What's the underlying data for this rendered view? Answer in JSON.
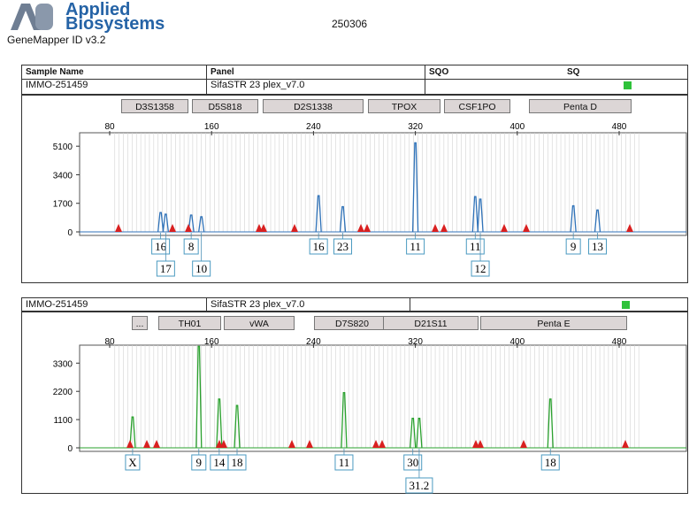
{
  "logo": {
    "line1": "Applied",
    "line2": "Biosystems"
  },
  "software": "GeneMapper ID v3.2",
  "run_id": "250306",
  "header": {
    "columns": [
      "Sample Name",
      "Panel",
      "SQO",
      "SQ"
    ],
    "sample": "IMMO-251459",
    "panel": "SifaSTR 23 plex_v7.0"
  },
  "colors": {
    "blue": "#2f72b8",
    "green": "#2aa12e",
    "red_marker": "#d92020",
    "quality_ok": "#2fc23a"
  },
  "chart_data": [
    {
      "type": "line",
      "series": [
        {
          "color": "blue"
        }
      ],
      "x_ticks": [
        80,
        160,
        240,
        320,
        400,
        480
      ],
      "y_ticks": [
        0,
        1700,
        3400,
        5100
      ],
      "ylim": [
        0,
        5900
      ],
      "markers": [
        "D3S1358",
        "D5S818",
        "D2S1338",
        "TPOX",
        "CSF1PO",
        "Penta D"
      ],
      "peaks": [
        {
          "x": 120,
          "y": 1150
        },
        {
          "x": 124,
          "y": 1050
        },
        {
          "x": 144,
          "y": 1000
        },
        {
          "x": 152,
          "y": 900
        },
        {
          "x": 244,
          "y": 2150
        },
        {
          "x": 263,
          "y": 1500
        },
        {
          "x": 320,
          "y": 5300
        },
        {
          "x": 367,
          "y": 2100
        },
        {
          "x": 371,
          "y": 1950
        },
        {
          "x": 444,
          "y": 1550
        },
        {
          "x": 463,
          "y": 1300
        }
      ],
      "alleles": [
        {
          "label": "16",
          "x": 120,
          "row": 0
        },
        {
          "label": "17",
          "x": 124,
          "row": 1
        },
        {
          "label": "8",
          "x": 144,
          "row": 0
        },
        {
          "label": "10",
          "x": 152,
          "row": 1
        },
        {
          "label": "16",
          "x": 244,
          "row": 0
        },
        {
          "label": "23",
          "x": 263,
          "row": 0
        },
        {
          "label": "11",
          "x": 320,
          "row": 0
        },
        {
          "label": "11",
          "x": 367,
          "row": 0
        },
        {
          "label": "12",
          "x": 371,
          "row": 1
        },
        {
          "label": "9",
          "x": 444,
          "row": 0
        },
        {
          "label": "13",
          "x": 463,
          "row": 0
        }
      ]
    },
    {
      "type": "line",
      "series": [
        {
          "color": "green"
        }
      ],
      "x_ticks": [
        80,
        160,
        240,
        320,
        400,
        480
      ],
      "y_ticks": [
        0,
        1100,
        2200,
        3300
      ],
      "ylim": [
        0,
        4000
      ],
      "markers": [
        "...",
        "TH01",
        "vWA",
        "D7S820",
        "D21S11",
        "Penta E"
      ],
      "peaks": [
        {
          "x": 98,
          "y": 1200
        },
        {
          "x": 150,
          "y": 3950
        },
        {
          "x": 166,
          "y": 1900
        },
        {
          "x": 180,
          "y": 1650
        },
        {
          "x": 264,
          "y": 2150
        },
        {
          "x": 318,
          "y": 1150
        },
        {
          "x": 323,
          "y": 1150
        },
        {
          "x": 426,
          "y": 1900
        }
      ],
      "alleles": [
        {
          "label": "X",
          "x": 98,
          "row": 0
        },
        {
          "label": "9",
          "x": 150,
          "row": 0
        },
        {
          "label": "14",
          "x": 166,
          "row": 0
        },
        {
          "label": "18",
          "x": 180,
          "row": 0
        },
        {
          "label": "11",
          "x": 264,
          "row": 0
        },
        {
          "label": "30",
          "x": 318,
          "row": 0
        },
        {
          "label": "31.2",
          "x": 323,
          "row": 1
        },
        {
          "label": "18",
          "x": 426,
          "row": 0
        }
      ]
    }
  ]
}
